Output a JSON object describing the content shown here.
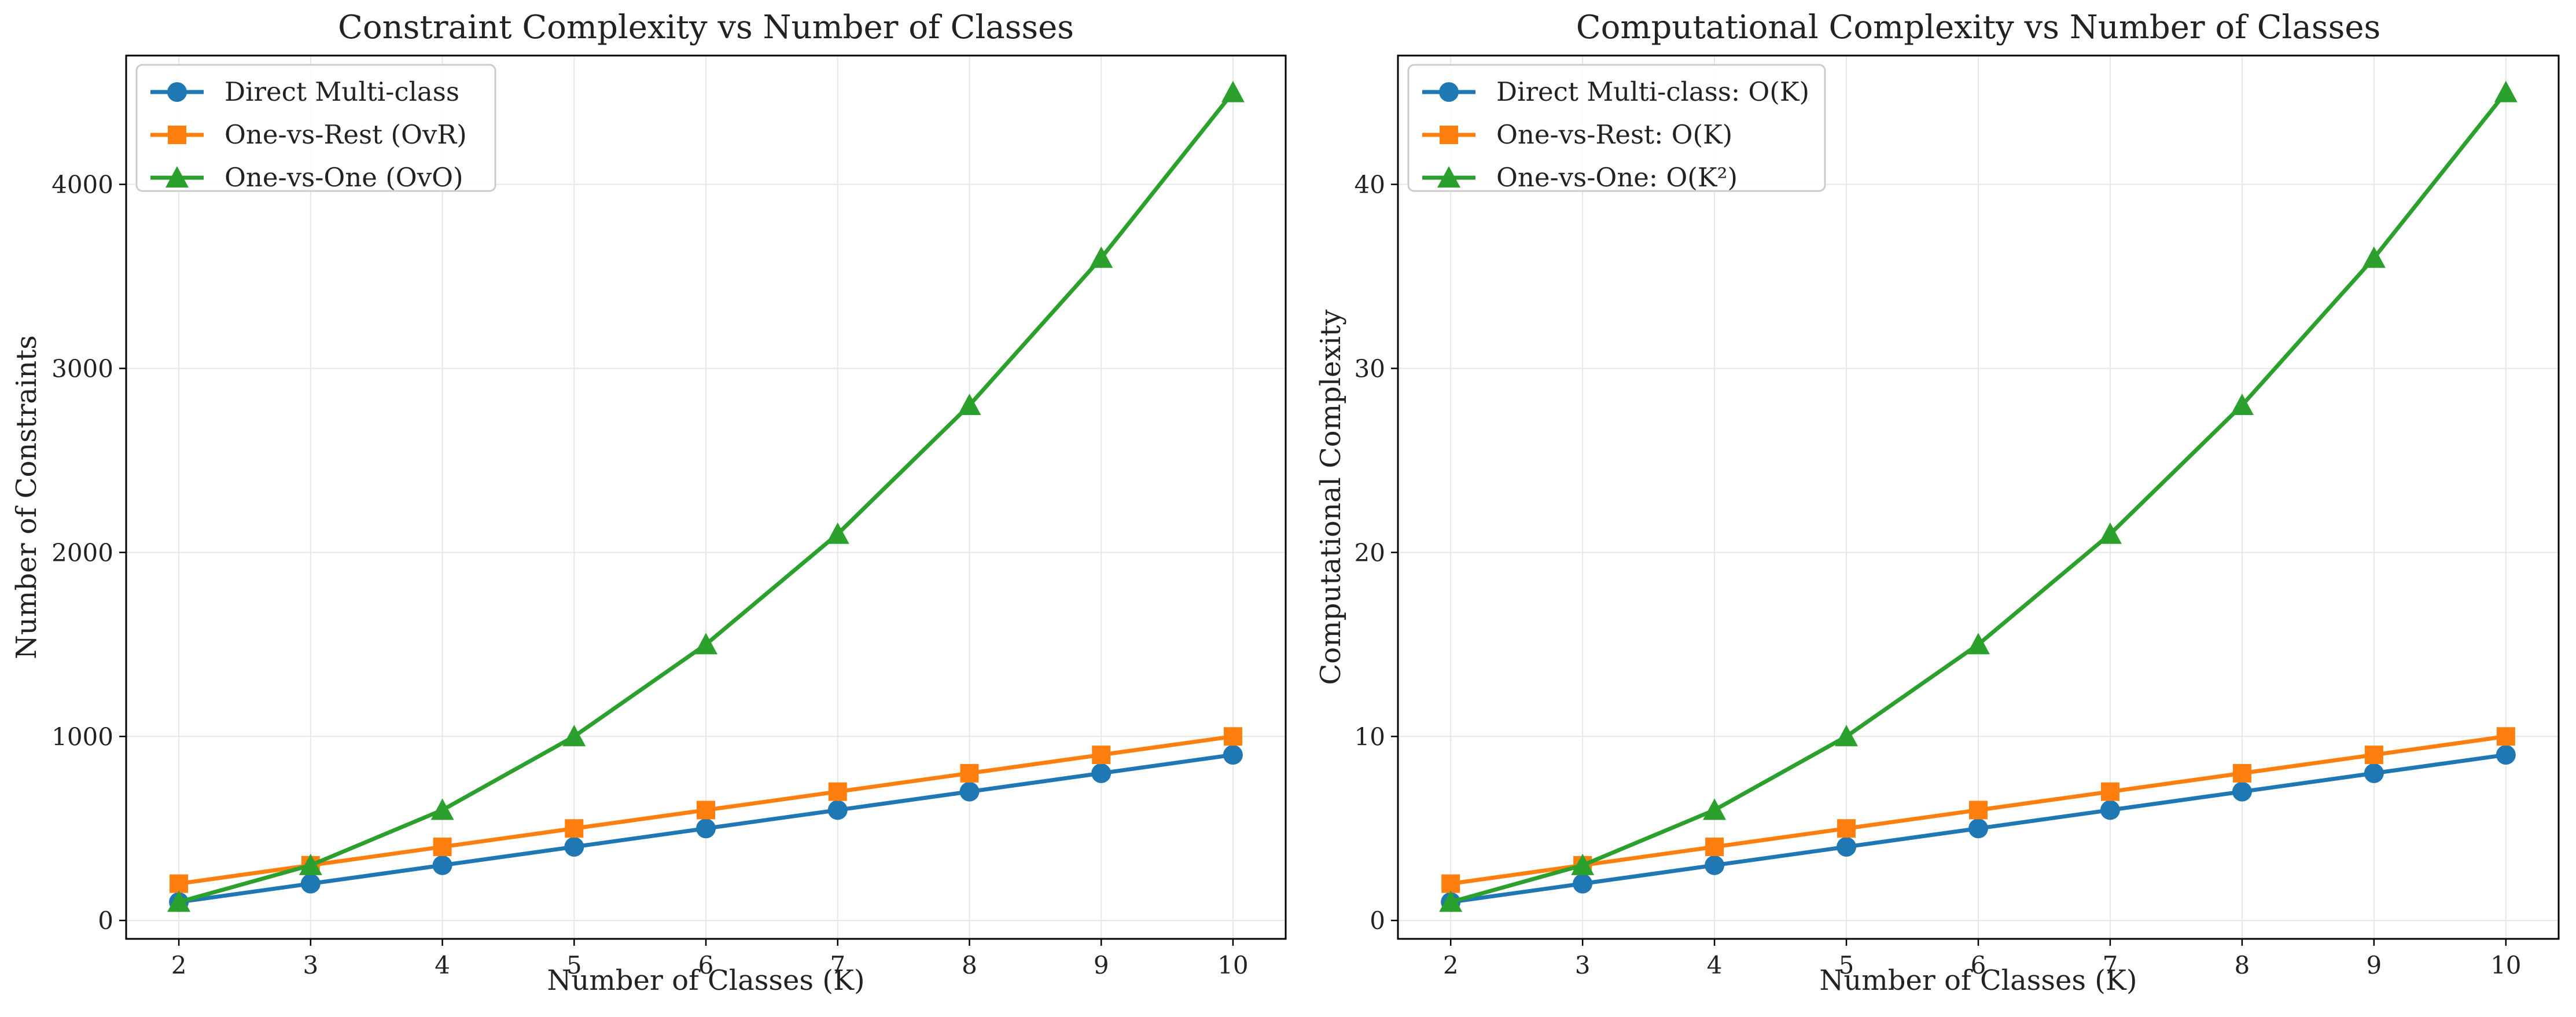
{
  "colors": {
    "blue": "#1f77b4",
    "orange": "#ff7f0e",
    "green": "#2ca02c",
    "grid": "#e6e6e6",
    "axes": "#000000"
  },
  "chart_data": [
    {
      "type": "line",
      "title": "Constraint Complexity vs Number of Classes",
      "xlabel": "Number of Classes (K)",
      "ylabel": "Number of Constraints",
      "xlim": [
        1.6,
        10.4
      ],
      "ylim": [
        -100,
        4700
      ],
      "xticks": [
        2,
        3,
        4,
        5,
        6,
        7,
        8,
        9,
        10
      ],
      "xtick_labels": [
        "2",
        "3",
        "4",
        "5",
        "6",
        "7",
        "8",
        "9",
        "10"
      ],
      "yticks": [
        0,
        1000,
        2000,
        3000,
        4000
      ],
      "ytick_labels": [
        "0",
        "1000",
        "2000",
        "3000",
        "4000"
      ],
      "grid": true,
      "legend_position": "top-left",
      "x": [
        2,
        3,
        4,
        5,
        6,
        7,
        8,
        9,
        10
      ],
      "series": [
        {
          "name": "Direct Multi-class",
          "marker": "circle",
          "color": "#1f77b4",
          "values": [
            100,
            200,
            300,
            400,
            500,
            600,
            700,
            800,
            900
          ]
        },
        {
          "name": "One-vs-Rest (OvR)",
          "marker": "square",
          "color": "#ff7f0e",
          "values": [
            200,
            300,
            400,
            500,
            600,
            700,
            800,
            900,
            1000
          ]
        },
        {
          "name": "One-vs-One (OvO)",
          "marker": "triangle",
          "color": "#2ca02c",
          "values": [
            100,
            300,
            600,
            1000,
            1500,
            2100,
            2800,
            3600,
            4500
          ]
        }
      ]
    },
    {
      "type": "line",
      "title": "Computational Complexity vs Number of Classes",
      "xlabel": "Number of Classes (K)",
      "ylabel": "Computational Complexity",
      "xlim": [
        1.6,
        10.4
      ],
      "ylim": [
        -1,
        47
      ],
      "xticks": [
        2,
        3,
        4,
        5,
        6,
        7,
        8,
        9,
        10
      ],
      "xtick_labels": [
        "2",
        "3",
        "4",
        "5",
        "6",
        "7",
        "8",
        "9",
        "10"
      ],
      "yticks": [
        0,
        10,
        20,
        30,
        40
      ],
      "ytick_labels": [
        "0",
        "10",
        "20",
        "30",
        "40"
      ],
      "grid": true,
      "legend_position": "top-left",
      "x": [
        2,
        3,
        4,
        5,
        6,
        7,
        8,
        9,
        10
      ],
      "series": [
        {
          "name": "Direct Multi-class: O(K)",
          "marker": "circle",
          "color": "#1f77b4",
          "values": [
            1,
            2,
            3,
            4,
            5,
            6,
            7,
            8,
            9
          ]
        },
        {
          "name": "One-vs-Rest: O(K)",
          "marker": "square",
          "color": "#ff7f0e",
          "values": [
            2,
            3,
            4,
            5,
            6,
            7,
            8,
            9,
            10
          ]
        },
        {
          "name": "One-vs-One: O(K²)",
          "marker": "triangle",
          "color": "#2ca02c",
          "values": [
            1,
            3,
            6,
            10,
            15,
            21,
            28,
            36,
            45
          ]
        }
      ]
    }
  ]
}
